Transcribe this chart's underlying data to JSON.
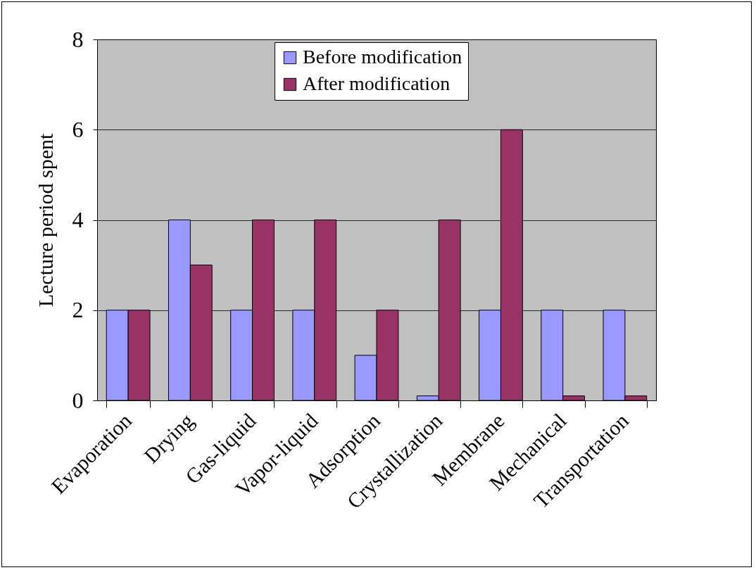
{
  "chart_data": {
    "type": "bar",
    "ylabel": "Lecture period spent",
    "categories": [
      "Evaporation",
      "Drying",
      "Gas-liquid",
      "Vapor-liquid",
      "Adsorption",
      "Crystallization",
      "Membrane",
      "Mechanical",
      "Transportation"
    ],
    "series": [
      {
        "name": "Before modification",
        "color": "#9999ff",
        "values": [
          2,
          4,
          2,
          2,
          1,
          0.1,
          2,
          2,
          2
        ]
      },
      {
        "name": "After modification",
        "color": "#993366",
        "values": [
          2,
          3,
          4,
          4,
          2,
          4,
          6,
          0.1,
          0.1
        ]
      }
    ],
    "ylim": [
      0,
      8
    ],
    "yticks": [
      0,
      2,
      4,
      6,
      8
    ],
    "grid": "y",
    "legend": "top"
  }
}
